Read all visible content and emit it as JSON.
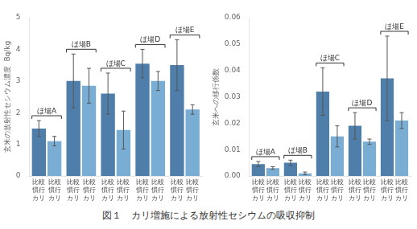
{
  "title": "図１　カリ増施による放射性セシウムの吸収抑制",
  "chart_data": [
    {
      "type": "bar",
      "y_label": "玄米の放射性セシウム濃度  Bq/kg",
      "categories": [
        "ほ場A",
        "ほ場B",
        "ほ場C",
        "ほ場D",
        "ほ場E"
      ],
      "series": [
        {
          "color": "#4F7EAA",
          "values": [
            1.5,
            3.0,
            2.6,
            3.55,
            3.5
          ],
          "errors": [
            0.25,
            0.85,
            0.65,
            0.45,
            0.8
          ]
        },
        {
          "color": "#7AADD4",
          "values": [
            1.1,
            2.85,
            1.45,
            3.0,
            2.1
          ],
          "errors": [
            0.15,
            0.55,
            0.6,
            0.3,
            0.15
          ]
        }
      ],
      "ylim": [
        0,
        5
      ],
      "yticks": [
        0,
        1,
        2,
        3,
        4,
        5
      ],
      "grid": false,
      "annotations": [
        "比較",
        "慣行",
        "カリ"
      ]
    },
    {
      "type": "bar",
      "y_label": "玄米への移行係数",
      "categories": [
        "ほ場A",
        "ほ場B",
        "ほ場C",
        "ほ場D",
        "ほ場E"
      ],
      "series": [
        {
          "color": "#4F7EAA",
          "values": [
            0.0045,
            0.005,
            0.032,
            0.019,
            0.037
          ],
          "errors": [
            0.001,
            0.001,
            0.009,
            0.005,
            0.016
          ]
        },
        {
          "color": "#7AADD4",
          "values": [
            0.003,
            0.001,
            0.015,
            0.013,
            0.021
          ],
          "errors": [
            0.0005,
            0.0005,
            0.004,
            0.001,
            0.003
          ]
        }
      ],
      "ylim": [
        0,
        0.06
      ],
      "yticks": [
        {
          "value": 0,
          "label": "0.00"
        },
        {
          "value": 0.01,
          "label": "0.01"
        },
        {
          "value": 0.02,
          "label": "0.02"
        },
        {
          "value": 0.03,
          "label": "0.03"
        },
        {
          "value": 0.04,
          "label": "0.04"
        },
        {
          "value": 0.05,
          "label": "0.05"
        },
        {
          "value": 0.06,
          "label": "0.06"
        }
      ],
      "grid": false,
      "annotations": [
        "比較",
        "慣行",
        "カリ"
      ]
    }
  ]
}
